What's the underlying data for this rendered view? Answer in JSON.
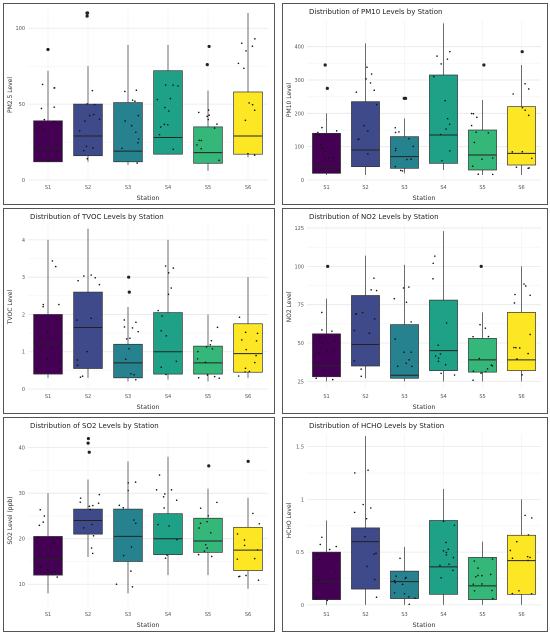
{
  "chart_data": [
    {
      "type": "box",
      "title": "",
      "xlabel": "Station",
      "ylabel": "PM2.5 Level",
      "ylim": [
        0,
        112
      ],
      "yticks": [
        0,
        50,
        100
      ],
      "categories": [
        "S1",
        "S2",
        "S3",
        "S4",
        "S5",
        "S6"
      ],
      "grid": true,
      "legend": "none",
      "colors": [
        "#440154",
        "#3e4a89",
        "#26828e",
        "#1fa187",
        "#35b779",
        "#fde725"
      ],
      "boxes": [
        {
          "min": 12,
          "q1": 12,
          "median": 21,
          "q3": 39,
          "max": 72,
          "outliers": [
            86
          ]
        },
        {
          "min": 12,
          "q1": 16,
          "median": 29,
          "q3": 50,
          "max": 75,
          "outliers": [
            108,
            110,
            110
          ]
        },
        {
          "min": 10,
          "q1": 12,
          "median": 19,
          "q3": 51,
          "max": 89,
          "outliers": []
        },
        {
          "min": 17,
          "q1": 17,
          "median": 28,
          "q3": 72,
          "max": 89,
          "outliers": []
        },
        {
          "min": 6,
          "q1": 11,
          "median": 18,
          "q3": 35,
          "max": 59,
          "outliers": [
            76,
            88
          ]
        },
        {
          "min": 15,
          "q1": 17,
          "median": 29,
          "q3": 58,
          "max": 110,
          "outliers": []
        }
      ]
    },
    {
      "type": "box",
      "title": "Distribution of PM10 Levels by Station",
      "xlabel": "Station",
      "ylabel": "PM10 Level",
      "ylim": [
        0,
        480
      ],
      "yticks": [
        0,
        100,
        200,
        300,
        400
      ],
      "categories": [
        "S1",
        "S2",
        "S3",
        "S4",
        "S5",
        "S6"
      ],
      "grid": true,
      "legend": "none",
      "colors": [
        "#440154",
        "#3e4a89",
        "#26828e",
        "#1fa187",
        "#35b779",
        "#fde725"
      ],
      "boxes": [
        {
          "min": 15,
          "q1": 20,
          "median": 40,
          "q3": 140,
          "max": 200,
          "outliers": [
            275,
            345
          ]
        },
        {
          "min": 15,
          "q1": 40,
          "median": 90,
          "q3": 235,
          "max": 410,
          "outliers": []
        },
        {
          "min": 20,
          "q1": 35,
          "median": 70,
          "q3": 130,
          "max": 185,
          "outliers": [
            245,
            245
          ]
        },
        {
          "min": 30,
          "q1": 50,
          "median": 135,
          "q3": 315,
          "max": 470,
          "outliers": []
        },
        {
          "min": 15,
          "q1": 30,
          "median": 75,
          "q3": 150,
          "max": 240,
          "outliers": [
            345
          ]
        },
        {
          "min": 15,
          "q1": 45,
          "median": 80,
          "q3": 220,
          "max": 345,
          "outliers": [
            385
          ]
        }
      ]
    },
    {
      "type": "box",
      "title": "Distribution of TVOC Levels by Station",
      "xlabel": "Station",
      "ylabel": "TVOC Level",
      "ylim": [
        0,
        4.4
      ],
      "yticks": [
        0,
        1,
        2,
        3,
        4
      ],
      "categories": [
        "S1",
        "S2",
        "S3",
        "S4",
        "S5",
        "S6"
      ],
      "grid": true,
      "legend": "none",
      "colors": [
        "#440154",
        "#3e4a89",
        "#26828e",
        "#1fa187",
        "#35b779",
        "#fde725"
      ],
      "boxes": [
        {
          "min": 0.3,
          "q1": 0.4,
          "median": 1.25,
          "q3": 2.0,
          "max": 4.0,
          "outliers": []
        },
        {
          "min": 0.3,
          "q1": 0.55,
          "median": 1.65,
          "q3": 2.6,
          "max": 4.3,
          "outliers": []
        },
        {
          "min": 0.2,
          "q1": 0.3,
          "median": 0.7,
          "q3": 1.2,
          "max": 2.2,
          "outliers": [
            2.6,
            3.0
          ]
        },
        {
          "min": 0.25,
          "q1": 0.4,
          "median": 1.0,
          "q3": 2.05,
          "max": 4.0,
          "outliers": []
        },
        {
          "min": 0.2,
          "q1": 0.4,
          "median": 0.7,
          "q3": 1.15,
          "max": 2.0,
          "outliers": []
        },
        {
          "min": 0.3,
          "q1": 0.45,
          "median": 0.95,
          "q3": 1.75,
          "max": 3.0,
          "outliers": []
        }
      ]
    },
    {
      "type": "box",
      "title": "Distribution of NO2 Levels by Station",
      "xlabel": "Station",
      "ylabel": "NO2 Level",
      "ylim": [
        20,
        127
      ],
      "yticks": [
        25,
        50,
        75,
        100,
        125
      ],
      "categories": [
        "S1",
        "S2",
        "S3",
        "S4",
        "S5",
        "S6"
      ],
      "grid": true,
      "legend": "none",
      "colors": [
        "#440154",
        "#3e4a89",
        "#26828e",
        "#1fa187",
        "#35b779",
        "#fde725"
      ],
      "boxes": [
        {
          "min": 25,
          "q1": 28,
          "median": 35,
          "q3": 56,
          "max": 79,
          "outliers": [
            100
          ]
        },
        {
          "min": 27,
          "q1": 35,
          "median": 49,
          "q3": 81,
          "max": 107,
          "outliers": []
        },
        {
          "min": 25,
          "q1": 27,
          "median": 29,
          "q3": 62,
          "max": 101,
          "outliers": []
        },
        {
          "min": 25,
          "q1": 32,
          "median": 45,
          "q3": 78,
          "max": 123,
          "outliers": []
        },
        {
          "min": 25,
          "q1": 31,
          "median": 39,
          "q3": 53,
          "max": 70,
          "outliers": [
            100
          ]
        },
        {
          "min": 25,
          "q1": 32,
          "median": 39,
          "q3": 70,
          "max": 100,
          "outliers": []
        }
      ]
    },
    {
      "type": "box",
      "title": "Distribution of SO2 Levels by Station",
      "xlabel": "Station",
      "ylabel": "SO2 Level (ppb)",
      "ylim": [
        5,
        43
      ],
      "yticks": [
        10,
        20,
        30,
        40
      ],
      "categories": [
        "S1",
        "S2",
        "S3",
        "S4",
        "S5",
        "S6"
      ],
      "grid": true,
      "legend": "none",
      "colors": [
        "#440154",
        "#3e4a89",
        "#26828e",
        "#1fa187",
        "#35b779",
        "#fde725"
      ],
      "boxes": [
        {
          "min": 8,
          "q1": 12,
          "median": 15.5,
          "q3": 20.5,
          "max": 30,
          "outliers": []
        },
        {
          "min": 16,
          "q1": 21,
          "median": 24,
          "q3": 26.5,
          "max": 33,
          "outliers": [
            39,
            41,
            42
          ]
        },
        {
          "min": 8,
          "q1": 15,
          "median": 20.5,
          "q3": 26.5,
          "max": 37,
          "outliers": []
        },
        {
          "min": 12,
          "q1": 16.5,
          "median": 20,
          "q3": 25.5,
          "max": 38,
          "outliers": []
        },
        {
          "min": 12,
          "q1": 17,
          "median": 19.5,
          "q3": 24.5,
          "max": 31,
          "outliers": [
            36
          ]
        },
        {
          "min": 9,
          "q1": 13,
          "median": 17.5,
          "q3": 22.5,
          "max": 29,
          "outliers": [
            37
          ]
        }
      ]
    },
    {
      "type": "box",
      "title": "Distribution of HCHO Levels by Station",
      "xlabel": "Station",
      "ylabel": "HCHO Level",
      "ylim": [
        -0.02,
        1.62
      ],
      "yticks": [
        0.0,
        0.5,
        1.0,
        1.5
      ],
      "categories": [
        "S1",
        "S2",
        "S3",
        "S4",
        "S5",
        "S6"
      ],
      "grid": true,
      "legend": "none",
      "colors": [
        "#440154",
        "#3e4a89",
        "#26828e",
        "#1fa187",
        "#35b779",
        "#fde725"
      ],
      "boxes": [
        {
          "min": 0.0,
          "q1": 0.05,
          "median": 0.22,
          "q3": 0.5,
          "max": 0.8,
          "outliers": []
        },
        {
          "min": 0.0,
          "q1": 0.15,
          "median": 0.6,
          "q3": 0.73,
          "max": 1.6,
          "outliers": []
        },
        {
          "min": 0.0,
          "q1": 0.06,
          "median": 0.22,
          "q3": 0.32,
          "max": 0.55,
          "outliers": []
        },
        {
          "min": 0.0,
          "q1": 0.1,
          "median": 0.36,
          "q3": 0.8,
          "max": 1.1,
          "outliers": []
        },
        {
          "min": 0.0,
          "q1": 0.05,
          "median": 0.18,
          "q3": 0.45,
          "max": 0.6,
          "outliers": []
        },
        {
          "min": 0.0,
          "q1": 0.1,
          "median": 0.42,
          "q3": 0.66,
          "max": 1.0,
          "outliers": []
        }
      ]
    }
  ]
}
